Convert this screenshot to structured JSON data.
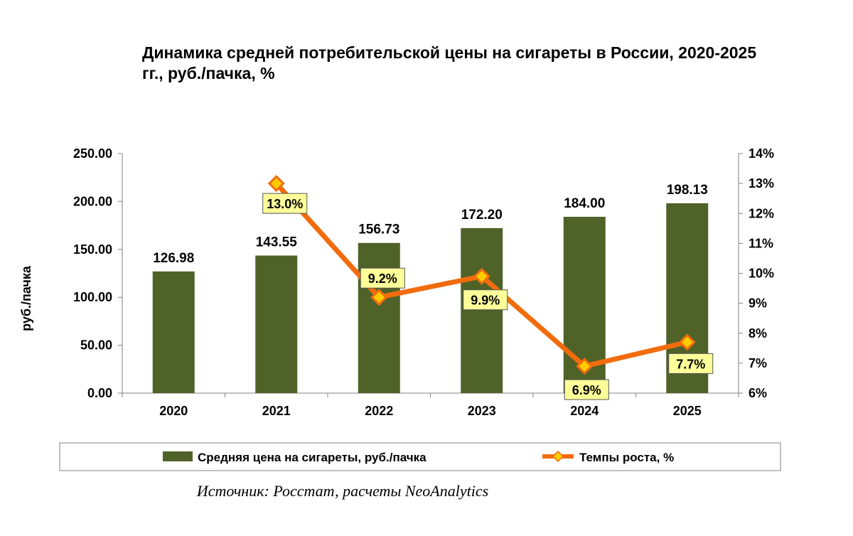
{
  "chart_data": {
    "type": "bar",
    "title_lines": [
      "Динамика средней потребительской цены на сигареты в России, 2020-2025",
      "гг., руб./пачка, %"
    ],
    "categories": [
      "2020",
      "2021",
      "2022",
      "2023",
      "2024",
      "2025"
    ],
    "ylabel": "руб./пачка",
    "ylim": [
      0,
      250
    ],
    "yticks": [
      "0.00",
      "50.00",
      "100.00",
      "150.00",
      "200.00",
      "250.00"
    ],
    "y2lim": [
      6,
      14
    ],
    "y2ticks": [
      "6%",
      "7%",
      "8%",
      "9%",
      "10%",
      "11%",
      "12%",
      "13%",
      "14%"
    ],
    "grid": false,
    "legend_position": "bottom",
    "series": [
      {
        "name": "Средняя цена на сигареты, руб./пачка",
        "type": "bar",
        "axis": "left",
        "color": "#4f6228",
        "values": [
          126.98,
          143.55,
          156.73,
          172.2,
          184.0,
          198.13
        ],
        "labels": [
          "126.98",
          "143.55",
          "156.73",
          "172.20",
          "184.00",
          "198.13"
        ]
      },
      {
        "name": "Темпы роста, %",
        "type": "line",
        "axis": "right",
        "color": "#f26c0d",
        "marker_color": "#ffcc00",
        "label_bg": "#ffff99",
        "values": [
          null,
          13.0,
          9.2,
          9.9,
          6.9,
          7.7
        ],
        "labels": [
          null,
          "13.0%",
          "9.2%",
          "9.9%",
          "6.9%",
          "7.7%"
        ]
      }
    ],
    "source": "Источник: Росстат, расчеты NeoAnalytics"
  }
}
